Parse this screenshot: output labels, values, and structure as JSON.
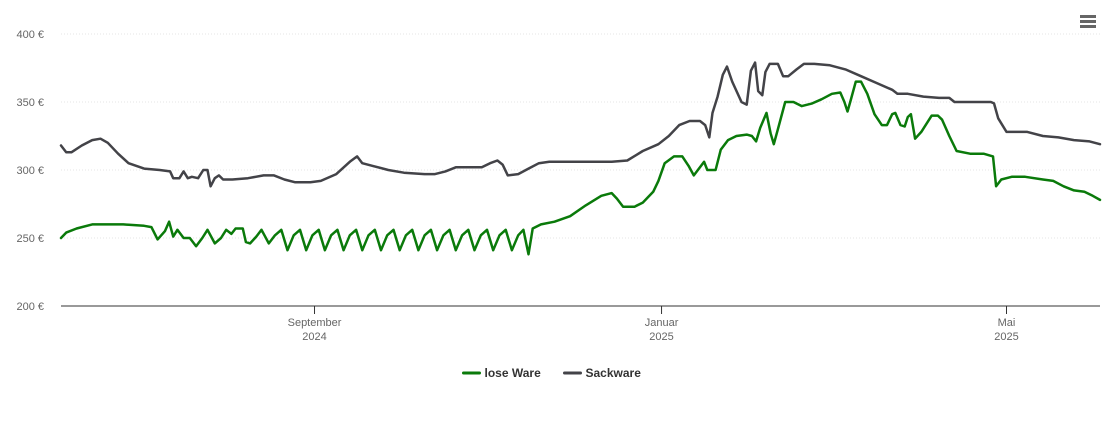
{
  "chart_data": {
    "type": "line",
    "title": "",
    "xlabel": "",
    "ylabel": "",
    "ylim": [
      200,
      400
    ],
    "y_ticks": [
      {
        "value": 200,
        "label": "200 €"
      },
      {
        "value": 250,
        "label": "250 €"
      },
      {
        "value": 300,
        "label": "300 €"
      },
      {
        "value": 350,
        "label": "350 €"
      },
      {
        "value": 400,
        "label": "400 €"
      }
    ],
    "xlim": [
      0,
      1
    ],
    "x_ticks": [
      {
        "pos": 0.244,
        "month": "September",
        "year": "2024"
      },
      {
        "pos": 0.578,
        "month": "Januar",
        "year": "2025"
      },
      {
        "pos": 0.91,
        "month": "Mai",
        "year": "2025"
      }
    ],
    "legend_position": "bottom-center",
    "series": [
      {
        "name": "lose Ware",
        "color": "#0a7a0a",
        "points": [
          [
            0.0,
            250
          ],
          [
            0.005,
            254
          ],
          [
            0.015,
            257
          ],
          [
            0.03,
            260
          ],
          [
            0.06,
            260
          ],
          [
            0.08,
            259
          ],
          [
            0.087,
            258
          ],
          [
            0.093,
            249
          ],
          [
            0.1,
            255
          ],
          [
            0.104,
            262
          ],
          [
            0.108,
            251
          ],
          [
            0.112,
            256
          ],
          [
            0.118,
            250
          ],
          [
            0.124,
            250
          ],
          [
            0.13,
            244
          ],
          [
            0.136,
            250
          ],
          [
            0.141,
            256
          ],
          [
            0.148,
            246
          ],
          [
            0.154,
            250
          ],
          [
            0.159,
            256
          ],
          [
            0.164,
            253
          ],
          [
            0.168,
            257
          ],
          [
            0.175,
            257
          ],
          [
            0.178,
            247
          ],
          [
            0.182,
            246
          ],
          [
            0.188,
            251
          ],
          [
            0.193,
            256
          ],
          [
            0.2,
            246
          ],
          [
            0.206,
            252
          ],
          [
            0.212,
            256
          ],
          [
            0.218,
            241
          ],
          [
            0.224,
            252
          ],
          [
            0.23,
            256
          ],
          [
            0.236,
            241
          ],
          [
            0.242,
            252
          ],
          [
            0.248,
            256
          ],
          [
            0.254,
            241
          ],
          [
            0.26,
            252
          ],
          [
            0.266,
            256
          ],
          [
            0.272,
            241
          ],
          [
            0.278,
            252
          ],
          [
            0.284,
            256
          ],
          [
            0.29,
            241
          ],
          [
            0.296,
            252
          ],
          [
            0.302,
            256
          ],
          [
            0.308,
            241
          ],
          [
            0.314,
            252
          ],
          [
            0.32,
            256
          ],
          [
            0.326,
            241
          ],
          [
            0.332,
            252
          ],
          [
            0.338,
            256
          ],
          [
            0.344,
            241
          ],
          [
            0.35,
            252
          ],
          [
            0.356,
            256
          ],
          [
            0.362,
            241
          ],
          [
            0.368,
            252
          ],
          [
            0.374,
            256
          ],
          [
            0.38,
            241
          ],
          [
            0.386,
            252
          ],
          [
            0.392,
            256
          ],
          [
            0.398,
            241
          ],
          [
            0.404,
            252
          ],
          [
            0.41,
            256
          ],
          [
            0.416,
            241
          ],
          [
            0.422,
            252
          ],
          [
            0.428,
            256
          ],
          [
            0.434,
            241
          ],
          [
            0.44,
            252
          ],
          [
            0.445,
            256
          ],
          [
            0.45,
            238
          ],
          [
            0.454,
            257
          ],
          [
            0.462,
            260
          ],
          [
            0.475,
            262
          ],
          [
            0.49,
            266
          ],
          [
            0.505,
            274
          ],
          [
            0.52,
            281
          ],
          [
            0.53,
            283
          ],
          [
            0.535,
            279
          ],
          [
            0.541,
            273
          ],
          [
            0.552,
            273
          ],
          [
            0.56,
            276
          ],
          [
            0.57,
            284
          ],
          [
            0.575,
            292
          ],
          [
            0.581,
            305
          ],
          [
            0.59,
            310
          ],
          [
            0.598,
            310
          ],
          [
            0.604,
            303
          ],
          [
            0.609,
            296
          ],
          [
            0.616,
            303
          ],
          [
            0.619,
            306
          ],
          [
            0.622,
            300
          ],
          [
            0.63,
            300
          ],
          [
            0.635,
            315
          ],
          [
            0.642,
            322
          ],
          [
            0.65,
            325
          ],
          [
            0.66,
            326
          ],
          [
            0.665,
            325
          ],
          [
            0.669,
            321
          ],
          [
            0.673,
            331
          ],
          [
            0.679,
            342
          ],
          [
            0.683,
            327
          ],
          [
            0.686,
            319
          ],
          [
            0.69,
            330
          ],
          [
            0.697,
            350
          ],
          [
            0.705,
            350
          ],
          [
            0.713,
            347
          ],
          [
            0.723,
            349
          ],
          [
            0.732,
            352
          ],
          [
            0.742,
            356
          ],
          [
            0.75,
            357
          ],
          [
            0.754,
            350
          ],
          [
            0.757,
            343
          ],
          [
            0.76,
            351
          ],
          [
            0.765,
            365
          ],
          [
            0.77,
            365
          ],
          [
            0.776,
            356
          ],
          [
            0.783,
            341
          ],
          [
            0.79,
            333
          ],
          [
            0.795,
            333
          ],
          [
            0.8,
            341
          ],
          [
            0.803,
            342
          ],
          [
            0.808,
            333
          ],
          [
            0.812,
            332
          ],
          [
            0.815,
            339
          ],
          [
            0.818,
            341
          ],
          [
            0.822,
            323
          ],
          [
            0.828,
            328
          ],
          [
            0.838,
            340
          ],
          [
            0.844,
            340
          ],
          [
            0.848,
            337
          ],
          [
            0.855,
            325
          ],
          [
            0.862,
            314
          ],
          [
            0.875,
            312
          ],
          [
            0.888,
            312
          ],
          [
            0.897,
            310
          ],
          [
            0.9,
            288
          ],
          [
            0.905,
            293
          ],
          [
            0.915,
            295
          ],
          [
            0.928,
            295
          ],
          [
            0.945,
            293
          ],
          [
            0.955,
            292
          ],
          [
            0.965,
            288
          ],
          [
            0.975,
            285
          ],
          [
            0.985,
            284
          ],
          [
            0.993,
            281
          ],
          [
            1.0,
            278
          ]
        ]
      },
      {
        "name": "Sackware",
        "color": "#434348",
        "points": [
          [
            0.0,
            318
          ],
          [
            0.005,
            313
          ],
          [
            0.01,
            313
          ],
          [
            0.02,
            318
          ],
          [
            0.03,
            322
          ],
          [
            0.038,
            323
          ],
          [
            0.045,
            320
          ],
          [
            0.055,
            312
          ],
          [
            0.065,
            305
          ],
          [
            0.08,
            301
          ],
          [
            0.095,
            300
          ],
          [
            0.105,
            299
          ],
          [
            0.108,
            294
          ],
          [
            0.114,
            294
          ],
          [
            0.118,
            299
          ],
          [
            0.122,
            294
          ],
          [
            0.126,
            295
          ],
          [
            0.132,
            294
          ],
          [
            0.137,
            300
          ],
          [
            0.141,
            300
          ],
          [
            0.144,
            288
          ],
          [
            0.148,
            294
          ],
          [
            0.152,
            296
          ],
          [
            0.156,
            293
          ],
          [
            0.165,
            293
          ],
          [
            0.18,
            294
          ],
          [
            0.195,
            296
          ],
          [
            0.205,
            296
          ],
          [
            0.215,
            293
          ],
          [
            0.225,
            291
          ],
          [
            0.24,
            291
          ],
          [
            0.25,
            292
          ],
          [
            0.265,
            297
          ],
          [
            0.278,
            306
          ],
          [
            0.285,
            310
          ],
          [
            0.29,
            305
          ],
          [
            0.3,
            303
          ],
          [
            0.315,
            300
          ],
          [
            0.33,
            298
          ],
          [
            0.35,
            297
          ],
          [
            0.36,
            297
          ],
          [
            0.37,
            299
          ],
          [
            0.38,
            302
          ],
          [
            0.395,
            302
          ],
          [
            0.405,
            302
          ],
          [
            0.413,
            305
          ],
          [
            0.42,
            307
          ],
          [
            0.425,
            304
          ],
          [
            0.43,
            296
          ],
          [
            0.44,
            297
          ],
          [
            0.45,
            301
          ],
          [
            0.46,
            305
          ],
          [
            0.47,
            306
          ],
          [
            0.49,
            306
          ],
          [
            0.51,
            306
          ],
          [
            0.53,
            306
          ],
          [
            0.545,
            307
          ],
          [
            0.56,
            314
          ],
          [
            0.575,
            319
          ],
          [
            0.585,
            325
          ],
          [
            0.595,
            333
          ],
          [
            0.605,
            336
          ],
          [
            0.615,
            336
          ],
          [
            0.62,
            333
          ],
          [
            0.624,
            324
          ],
          [
            0.627,
            342
          ],
          [
            0.632,
            354
          ],
          [
            0.637,
            370
          ],
          [
            0.641,
            376
          ],
          [
            0.646,
            365
          ],
          [
            0.655,
            350
          ],
          [
            0.66,
            348
          ],
          [
            0.664,
            373
          ],
          [
            0.668,
            379
          ],
          [
            0.671,
            358
          ],
          [
            0.675,
            355
          ],
          [
            0.678,
            372
          ],
          [
            0.682,
            378
          ],
          [
            0.69,
            378
          ],
          [
            0.695,
            369
          ],
          [
            0.7,
            369
          ],
          [
            0.708,
            374
          ],
          [
            0.715,
            378
          ],
          [
            0.725,
            378
          ],
          [
            0.74,
            377
          ],
          [
            0.755,
            374
          ],
          [
            0.77,
            369
          ],
          [
            0.785,
            364
          ],
          [
            0.8,
            359
          ],
          [
            0.805,
            356
          ],
          [
            0.815,
            356
          ],
          [
            0.83,
            354
          ],
          [
            0.845,
            353
          ],
          [
            0.855,
            353
          ],
          [
            0.86,
            350
          ],
          [
            0.88,
            350
          ],
          [
            0.895,
            350
          ],
          [
            0.898,
            349
          ],
          [
            0.902,
            338
          ],
          [
            0.91,
            328
          ],
          [
            0.92,
            328
          ],
          [
            0.93,
            328
          ],
          [
            0.945,
            325
          ],
          [
            0.96,
            324
          ],
          [
            0.975,
            322
          ],
          [
            0.99,
            321
          ],
          [
            1.0,
            319
          ]
        ]
      }
    ]
  },
  "toolbar": {
    "menu_icon": "hamburger-menu-icon"
  }
}
